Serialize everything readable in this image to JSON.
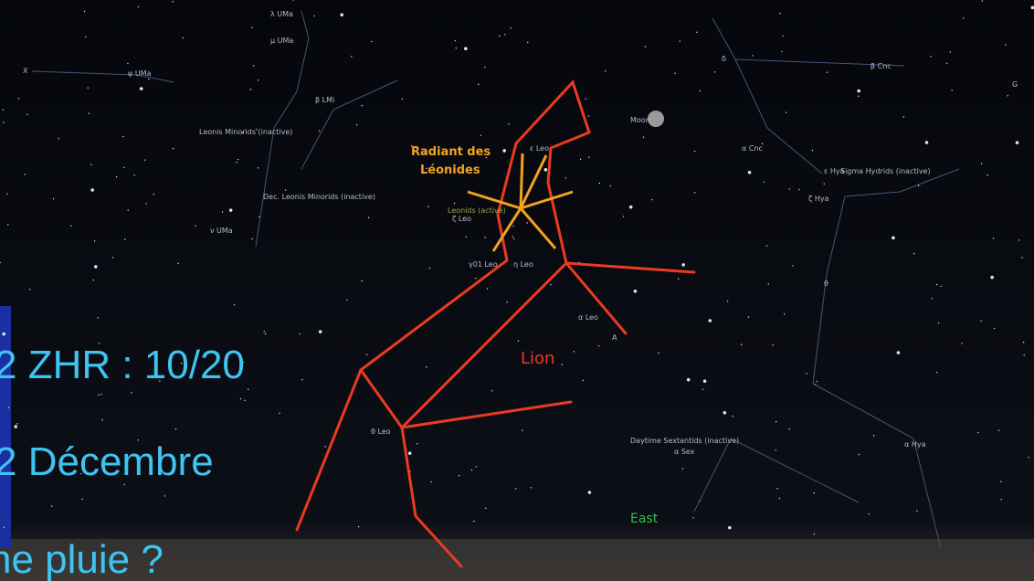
{
  "sky": {
    "labels": [
      "λ UMa",
      "μ UMa",
      "ψ UMa",
      "X",
      "β LMi",
      "Leonis Minorids (inactive)",
      "Dec. Leonis Minorids (inactive)",
      "ν UMa",
      "Leonids (active)",
      "ζ Leo",
      "ε Leo",
      "γ01 Leo",
      "η Leo",
      "α Leo",
      "A",
      "θ Leo",
      "Moon",
      "δ",
      "β Cnc",
      "α Cnc",
      "G",
      "ε Hya",
      "Sigma Hydrids (inactive)",
      "ζ Hya",
      "θ",
      "Daytime Sextantids (inactive)",
      "α Sex",
      "α Hya",
      "East"
    ]
  },
  "overlay": {
    "radiant": [
      "Radiant des",
      "Léonides"
    ],
    "constellation": "Lion"
  },
  "slide_text": [
    "2 ZHR : 10/20",
    "2 Décembre",
    "ne pluie ?"
  ]
}
